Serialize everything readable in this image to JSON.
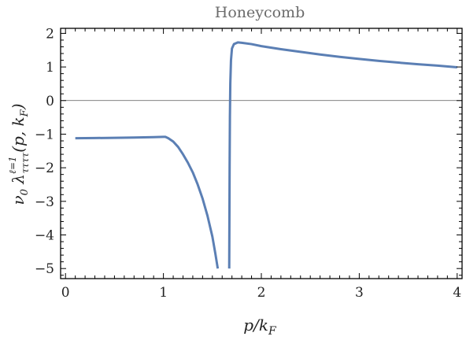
{
  "chart_data": {
    "type": "line",
    "title": "Honeycomb",
    "xlabel": "p/k_F",
    "ylabel": "ν₀ λ^{ℓ=1}_{ττττ}(p, k_F)",
    "xlim": [
      -0.05,
      4.05
    ],
    "ylim": [
      -5.3,
      2.15
    ],
    "x_ticks": [
      0,
      1,
      2,
      3,
      4
    ],
    "y_ticks": [
      -5,
      -4,
      -3,
      -2,
      -1,
      0,
      1,
      2
    ],
    "x_tick_labels": [
      "0",
      "1",
      "2",
      "3",
      "4"
    ],
    "y_tick_labels": [
      "−5",
      "−4",
      "−3",
      "−2",
      "−1",
      "0",
      "1",
      "2"
    ],
    "grid": false,
    "reference_line_y": 0,
    "series": [
      {
        "color": "#5b7fb4",
        "segments": [
          [
            [
              0.1,
              -1.12
            ],
            [
              0.3,
              -1.115
            ],
            [
              0.5,
              -1.11
            ],
            [
              0.7,
              -1.1
            ],
            [
              0.9,
              -1.09
            ],
            [
              1.0,
              -1.08
            ],
            [
              1.02,
              -1.08
            ],
            [
              1.05,
              -1.12
            ],
            [
              1.1,
              -1.22
            ],
            [
              1.15,
              -1.38
            ],
            [
              1.2,
              -1.6
            ],
            [
              1.25,
              -1.85
            ],
            [
              1.3,
              -2.14
            ],
            [
              1.35,
              -2.5
            ],
            [
              1.4,
              -2.92
            ],
            [
              1.45,
              -3.43
            ],
            [
              1.5,
              -4.05
            ],
            [
              1.53,
              -4.55
            ],
            [
              1.555,
              -5.0
            ]
          ],
          [
            [
              1.672,
              -5.0
            ],
            [
              1.674,
              -3.5
            ],
            [
              1.676,
              -2.0
            ],
            [
              1.679,
              -0.5
            ],
            [
              1.683,
              0.5
            ],
            [
              1.69,
              1.2
            ],
            [
              1.7,
              1.55
            ],
            [
              1.72,
              1.68
            ],
            [
              1.76,
              1.73
            ],
            [
              1.8,
              1.72
            ],
            [
              1.9,
              1.68
            ],
            [
              2.0,
              1.62
            ],
            [
              2.2,
              1.53
            ],
            [
              2.4,
              1.45
            ],
            [
              2.6,
              1.37
            ],
            [
              2.8,
              1.3
            ],
            [
              3.0,
              1.24
            ],
            [
              3.2,
              1.18
            ],
            [
              3.4,
              1.13
            ],
            [
              3.6,
              1.08
            ],
            [
              3.8,
              1.04
            ],
            [
              4.0,
              0.99
            ]
          ]
        ]
      }
    ]
  }
}
